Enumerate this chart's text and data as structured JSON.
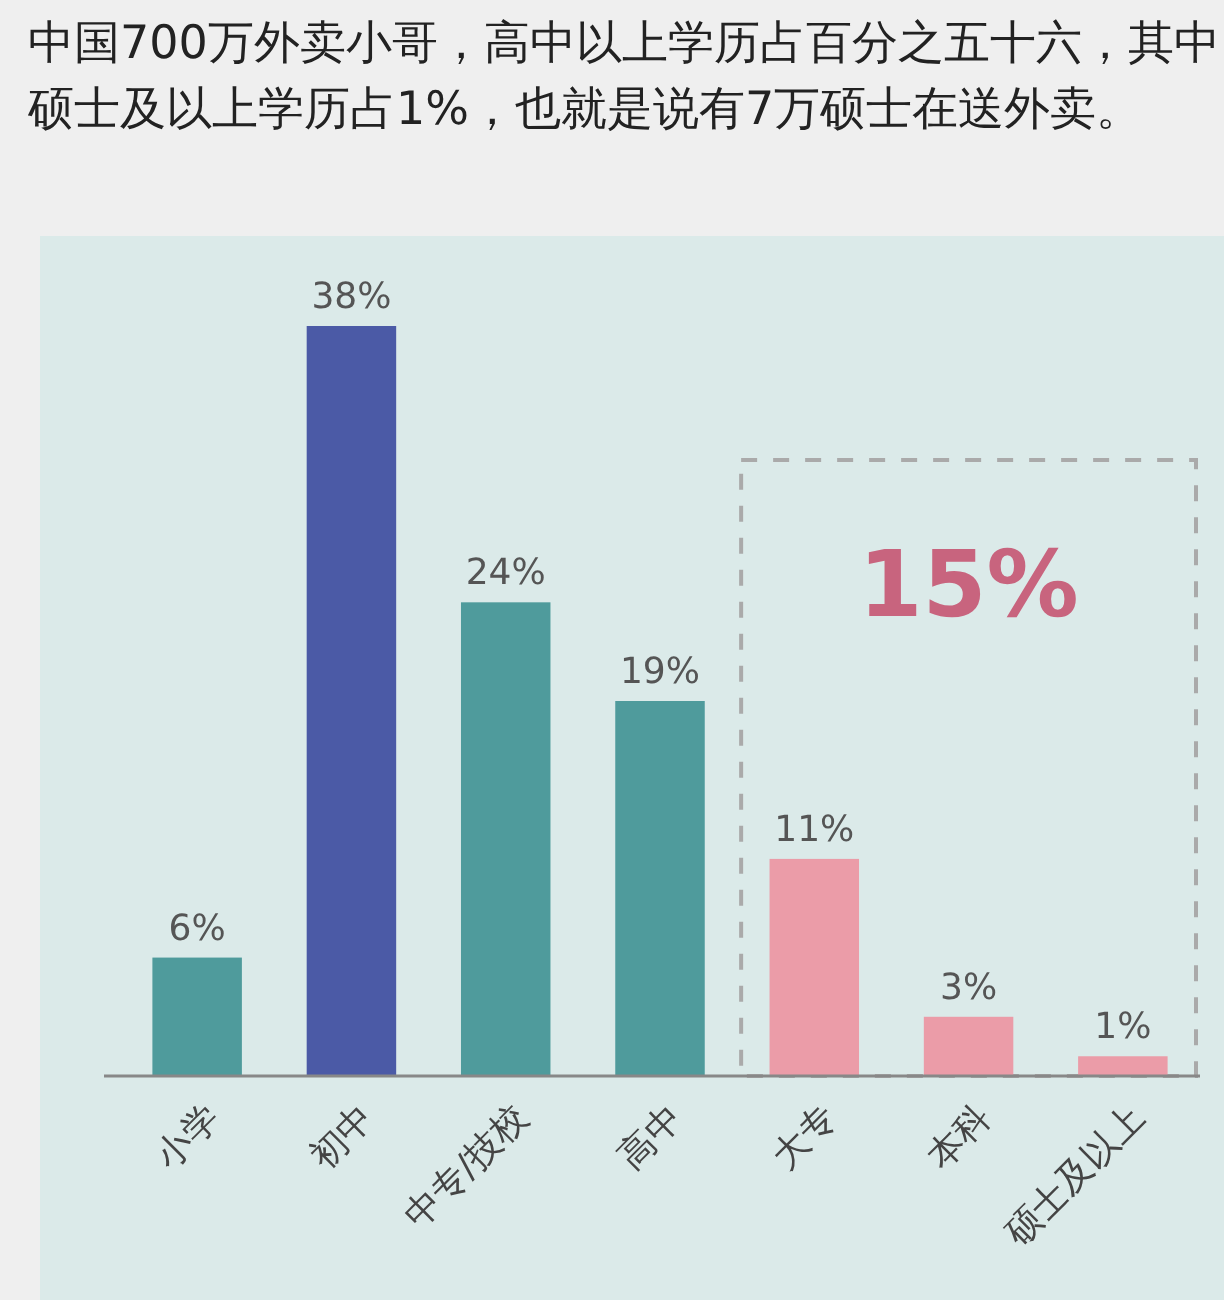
{
  "chart_data": {
    "type": "bar",
    "title": "中国700万外卖小哥，高中以上学历占百分之五十六，其中硕士及以上学历占1%，也就是说有7万硕士在送外卖。",
    "categories": [
      "小学",
      "初中",
      "中专/技校",
      "高中",
      "大专",
      "本科",
      "硕士及以上"
    ],
    "values": [
      6,
      38,
      24,
      19,
      11,
      3,
      1
    ],
    "colors": [
      "#4f9b9c",
      "#4b5aa6",
      "#4f9b9c",
      "#4f9b9c",
      "#eb9ca8",
      "#eb9ca8",
      "#eb9ca8"
    ],
    "value_labels": [
      "6%",
      "38%",
      "24%",
      "19%",
      "11%",
      "3%",
      "1%"
    ],
    "annotations": [
      "15%"
    ]
  }
}
